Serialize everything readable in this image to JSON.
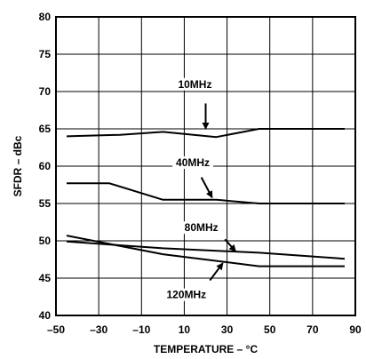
{
  "chart_data": {
    "type": "line",
    "xlabel": "TEMPERATURE – °C",
    "ylabel": "SFDR – dBc",
    "xlim": [
      -50,
      90
    ],
    "ylim": [
      40,
      80
    ],
    "xticks": [
      -50,
      -30,
      -10,
      10,
      30,
      50,
      70,
      90
    ],
    "yticks": [
      40,
      45,
      50,
      55,
      60,
      65,
      70,
      75,
      80
    ],
    "xtick_labels": [
      "–50",
      "–30",
      "–10",
      "10",
      "30",
      "50",
      "70",
      "90"
    ],
    "ytick_labels": [
      "40",
      "45",
      "50",
      "55",
      "60",
      "65",
      "70",
      "75",
      "80"
    ],
    "grid": true,
    "series": [
      {
        "name": "10MHz",
        "x": [
          -45,
          -20,
          0,
          25,
          45,
          85
        ],
        "y": [
          64.0,
          64.2,
          64.6,
          63.9,
          65.0,
          65.0
        ]
      },
      {
        "name": "40MHz",
        "x": [
          -45,
          -25,
          0,
          25,
          45,
          85
        ],
        "y": [
          57.7,
          57.7,
          55.5,
          55.5,
          55.0,
          55.0
        ]
      },
      {
        "name": "80MHz",
        "x": [
          -45,
          0,
          45,
          85
        ],
        "y": [
          49.9,
          49.0,
          48.4,
          47.6
        ]
      },
      {
        "name": "120MHz",
        "x": [
          -45,
          0,
          45,
          85
        ],
        "y": [
          50.7,
          48.2,
          46.6,
          46.6
        ]
      }
    ]
  }
}
